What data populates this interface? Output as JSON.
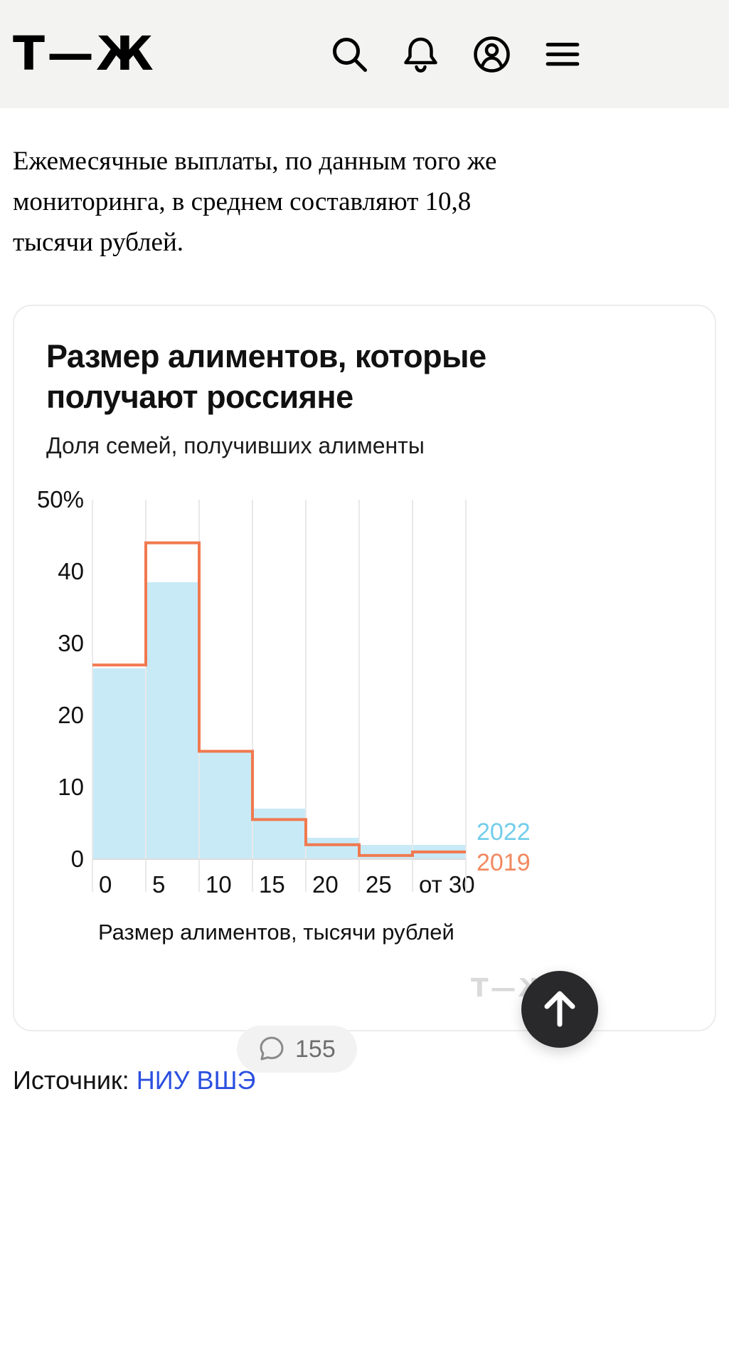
{
  "header": {
    "logo_text": "Т—Ж",
    "icons": [
      "search-icon",
      "bell-icon",
      "profile-icon",
      "menu-icon"
    ]
  },
  "article": {
    "paragraph": "Ежемесячные выплаты, по данным того же мониторинга, в среднем составляют 10,8 тысячи рублей."
  },
  "comments": {
    "count": "155"
  },
  "source": {
    "label": "Источник:",
    "link_text": "НИУ ВШЭ"
  },
  "colors": {
    "header_bg": "#f3f3f1",
    "bar_2022": "#c8eaf7",
    "line_2019": "#f0794f",
    "legend_2022_text": "#72cdea",
    "legend_2019_text": "#f2885f",
    "link": "#2b4fe0",
    "watermark": "#dadada",
    "scroll_button_bg": "#29292b"
  },
  "chart_data": {
    "type": "bar",
    "title": "Размер алиментов, которые получают россияне",
    "subtitle": "Доля семей, получивших алименты",
    "xlabel": "Размер алиментов, тысячи рублей",
    "categories": [
      "0",
      "5",
      "10",
      "15",
      "20",
      "25",
      "от 30"
    ],
    "series": [
      {
        "name": "2022",
        "type": "bar",
        "color": "#c8eaf7",
        "label_color": "#72cdea",
        "values": [
          26.5,
          38.5,
          15,
          7,
          3,
          2,
          2
        ]
      },
      {
        "name": "2019",
        "type": "step-line",
        "color": "#f0794f",
        "label_color": "#f2885f",
        "values": [
          27,
          44,
          15,
          5.5,
          2,
          0.5,
          1
        ]
      }
    ],
    "ylim": [
      0,
      50
    ],
    "yticks": [
      "50%",
      "40",
      "30",
      "20",
      "10",
      "0"
    ],
    "ytick_values": [
      50,
      40,
      30,
      20,
      10,
      0
    ],
    "grid": "vertical",
    "legend_position": "right-bottom",
    "watermark": "Т—Ж"
  }
}
